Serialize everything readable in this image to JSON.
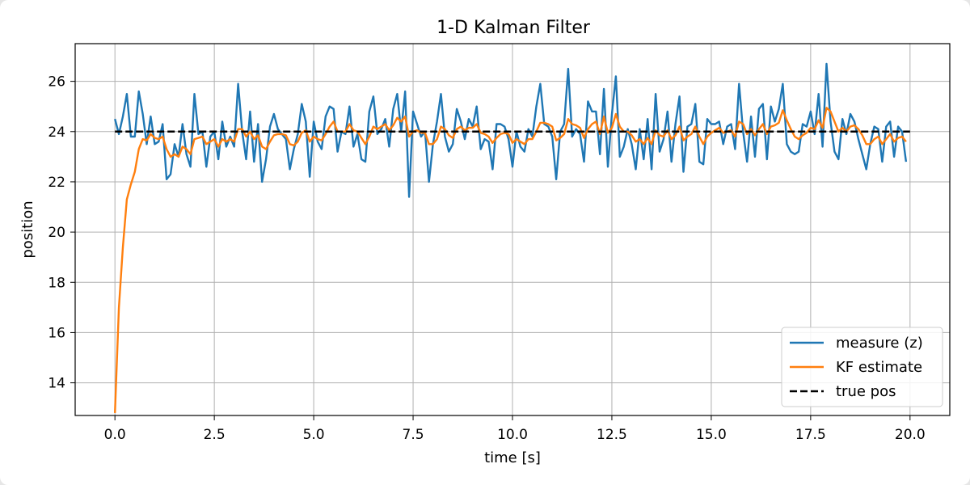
{
  "chart_data": {
    "type": "line",
    "title": "1-D Kalman Filter",
    "xlabel": "time [s]",
    "ylabel": "position",
    "xlim": [
      -1,
      21
    ],
    "ylim": [
      12.7,
      27.5
    ],
    "grid": true,
    "legend_position": "lower-right",
    "xticks": [
      0.0,
      2.5,
      5.0,
      7.5,
      10.0,
      12.5,
      15.0,
      17.5,
      20.0
    ],
    "xtick_labels": [
      "0.0",
      "2.5",
      "5.0",
      "7.5",
      "10.0",
      "12.5",
      "15.0",
      "17.5",
      "20.0"
    ],
    "yticks": [
      14,
      16,
      18,
      20,
      22,
      24,
      26
    ],
    "ytick_labels": [
      "14",
      "16",
      "18",
      "20",
      "22",
      "24",
      "26"
    ],
    "series": [
      {
        "name": "measure (z)",
        "color": "#1f77b4",
        "style": "solid",
        "x": [
          0.0,
          0.1,
          0.2,
          0.3,
          0.4,
          0.5,
          0.6,
          0.7,
          0.8,
          0.9,
          1.0,
          1.1,
          1.2,
          1.3,
          1.4,
          1.5,
          1.6,
          1.7,
          1.8,
          1.9,
          2.0,
          2.1,
          2.2,
          2.3,
          2.4,
          2.5,
          2.6,
          2.7,
          2.8,
          2.9,
          3.0,
          3.1,
          3.2,
          3.3,
          3.4,
          3.5,
          3.6,
          3.7,
          3.8,
          3.9,
          4.0,
          4.1,
          4.2,
          4.3,
          4.4,
          4.5,
          4.6,
          4.7,
          4.8,
          4.9,
          5.0,
          5.1,
          5.2,
          5.3,
          5.4,
          5.5,
          5.6,
          5.7,
          5.8,
          5.9,
          6.0,
          6.1,
          6.2,
          6.3,
          6.4,
          6.5,
          6.6,
          6.7,
          6.8,
          6.9,
          7.0,
          7.1,
          7.2,
          7.3,
          7.4,
          7.5,
          7.6,
          7.7,
          7.8,
          7.9,
          8.0,
          8.1,
          8.2,
          8.3,
          8.4,
          8.5,
          8.6,
          8.7,
          8.8,
          8.9,
          9.0,
          9.1,
          9.2,
          9.3,
          9.4,
          9.5,
          9.6,
          9.7,
          9.8,
          9.9,
          10.0,
          10.1,
          10.2,
          10.3,
          10.4,
          10.5,
          10.6,
          10.7,
          10.8,
          10.9,
          11.0,
          11.1,
          11.2,
          11.3,
          11.4,
          11.5,
          11.6,
          11.7,
          11.8,
          11.9,
          12.0,
          12.1,
          12.2,
          12.3,
          12.4,
          12.5,
          12.6,
          12.7,
          12.8,
          12.9,
          13.0,
          13.1,
          13.2,
          13.3,
          13.4,
          13.5,
          13.6,
          13.7,
          13.8,
          13.9,
          14.0,
          14.1,
          14.2,
          14.3,
          14.4,
          14.5,
          14.6,
          14.7,
          14.8,
          14.9,
          15.0,
          15.1,
          15.2,
          15.3,
          15.4,
          15.5,
          15.6,
          15.7,
          15.8,
          15.9,
          16.0,
          16.1,
          16.2,
          16.3,
          16.4,
          16.5,
          16.6,
          16.7,
          16.8,
          16.9,
          17.0,
          17.1,
          17.2,
          17.3,
          17.4,
          17.5,
          17.6,
          17.7,
          17.8,
          17.9,
          18.0,
          18.1,
          18.2,
          18.3,
          18.4,
          18.5,
          18.6,
          18.7,
          18.8,
          18.9,
          19.0,
          19.1,
          19.2,
          19.3,
          19.4,
          19.5,
          19.6,
          19.7,
          19.8,
          19.9
        ],
        "values": [
          24.5,
          23.9,
          24.6,
          25.5,
          23.8,
          23.8,
          25.6,
          24.7,
          23.5,
          24.6,
          23.5,
          23.6,
          24.3,
          22.1,
          22.3,
          23.5,
          23.0,
          24.3,
          23.1,
          22.6,
          25.5,
          23.9,
          24.0,
          22.6,
          23.8,
          24.0,
          22.9,
          24.4,
          23.4,
          23.8,
          23.4,
          25.9,
          24.0,
          22.9,
          24.8,
          22.8,
          24.3,
          22.0,
          22.9,
          24.2,
          24.7,
          24.1,
          23.9,
          23.7,
          22.5,
          23.3,
          23.9,
          25.1,
          24.4,
          22.2,
          24.4,
          23.6,
          23.3,
          24.6,
          25.0,
          24.9,
          23.2,
          24.0,
          23.9,
          25.0,
          23.4,
          23.9,
          22.9,
          22.8,
          24.8,
          25.4,
          23.9,
          24.1,
          24.5,
          23.4,
          24.9,
          25.5,
          24.0,
          25.6,
          21.4,
          24.8,
          24.3,
          23.8,
          24.0,
          22.0,
          23.5,
          24.4,
          25.5,
          23.8,
          23.2,
          23.5,
          24.9,
          24.4,
          23.7,
          24.5,
          24.2,
          25.0,
          23.3,
          23.7,
          23.6,
          22.5,
          24.3,
          24.3,
          24.2,
          23.7,
          22.6,
          24.0,
          23.4,
          23.2,
          24.1,
          23.8,
          25.0,
          25.9,
          24.3,
          24.2,
          23.8,
          22.1,
          24.0,
          24.3,
          26.5,
          23.8,
          24.1,
          23.9,
          22.8,
          25.2,
          24.8,
          24.8,
          23.1,
          25.7,
          22.6,
          24.7,
          26.2,
          23.0,
          23.4,
          24.1,
          23.5,
          22.5,
          24.1,
          22.9,
          24.5,
          22.5,
          25.5,
          23.2,
          23.7,
          24.8,
          22.8,
          24.3,
          25.4,
          22.4,
          24.2,
          24.3,
          25.1,
          22.8,
          22.7,
          24.5,
          24.3,
          24.3,
          24.4,
          23.5,
          24.2,
          24.3,
          23.3,
          25.9,
          24.0,
          22.8,
          24.6,
          23.0,
          24.9,
          25.1,
          22.9,
          25.0,
          24.4,
          24.9,
          25.9,
          23.5,
          23.2,
          23.1,
          23.2,
          24.3,
          24.2,
          24.8,
          23.9,
          25.5,
          23.4,
          26.7,
          24.4,
          23.2,
          22.9,
          24.5,
          23.9,
          24.7,
          24.4,
          23.7,
          23.1,
          22.5,
          23.5,
          24.2,
          24.1,
          22.8,
          24.2,
          24.4,
          23.0,
          24.2,
          24.0,
          22.8
        ]
      },
      {
        "name": "KF estimate",
        "color": "#ff7f0e",
        "style": "solid",
        "x": [
          0.0,
          0.1,
          0.2,
          0.3,
          0.4,
          0.5,
          0.6,
          0.7,
          0.8,
          0.9,
          1.0,
          1.1,
          1.2,
          1.3,
          1.4,
          1.5,
          1.6,
          1.7,
          1.8,
          1.9,
          2.0,
          2.1,
          2.2,
          2.3,
          2.4,
          2.5,
          2.6,
          2.7,
          2.8,
          2.9,
          3.0,
          3.1,
          3.2,
          3.3,
          3.4,
          3.5,
          3.6,
          3.7,
          3.8,
          3.9,
          4.0,
          4.1,
          4.2,
          4.3,
          4.4,
          4.5,
          4.6,
          4.7,
          4.8,
          4.9,
          5.0,
          5.1,
          5.2,
          5.3,
          5.4,
          5.5,
          5.6,
          5.7,
          5.8,
          5.9,
          6.0,
          6.1,
          6.2,
          6.3,
          6.4,
          6.5,
          6.6,
          6.7,
          6.8,
          6.9,
          7.0,
          7.1,
          7.2,
          7.3,
          7.4,
          7.5,
          7.6,
          7.7,
          7.8,
          7.9,
          8.0,
          8.1,
          8.2,
          8.3,
          8.4,
          8.5,
          8.6,
          8.7,
          8.8,
          8.9,
          9.0,
          9.1,
          9.2,
          9.3,
          9.4,
          9.5,
          9.6,
          9.7,
          9.8,
          9.9,
          10.0,
          10.1,
          10.2,
          10.3,
          10.4,
          10.5,
          10.6,
          10.7,
          10.8,
          10.9,
          11.0,
          11.1,
          11.2,
          11.3,
          11.4,
          11.5,
          11.6,
          11.7,
          11.8,
          11.9,
          12.0,
          12.1,
          12.2,
          12.3,
          12.4,
          12.5,
          12.6,
          12.7,
          12.8,
          12.9,
          13.0,
          13.1,
          13.2,
          13.3,
          13.4,
          13.5,
          13.6,
          13.7,
          13.8,
          13.9,
          14.0,
          14.1,
          14.2,
          14.3,
          14.4,
          14.5,
          14.6,
          14.7,
          14.8,
          14.9,
          15.0,
          15.1,
          15.2,
          15.3,
          15.4,
          15.5,
          15.6,
          15.7,
          15.8,
          15.9,
          16.0,
          16.1,
          16.2,
          16.3,
          16.4,
          16.5,
          16.6,
          16.7,
          16.8,
          16.9,
          17.0,
          17.1,
          17.2,
          17.3,
          17.4,
          17.5,
          17.6,
          17.7,
          17.8,
          17.9,
          18.0,
          18.1,
          18.2,
          18.3,
          18.4,
          18.5,
          18.6,
          18.7,
          18.8,
          18.9,
          19.0,
          19.1,
          19.2,
          19.3,
          19.4,
          19.5,
          19.6,
          19.7,
          19.8,
          19.9
        ],
        "values": [
          12.8,
          17.0,
          19.4,
          21.3,
          21.9,
          22.4,
          23.3,
          23.7,
          23.65,
          23.9,
          23.75,
          23.7,
          23.8,
          23.3,
          23.0,
          23.1,
          23.0,
          23.4,
          23.3,
          23.1,
          23.7,
          23.75,
          23.8,
          23.5,
          23.6,
          23.7,
          23.4,
          23.7,
          23.6,
          23.7,
          23.6,
          24.1,
          24.1,
          23.8,
          24.0,
          23.7,
          23.85,
          23.4,
          23.3,
          23.6,
          23.85,
          23.9,
          23.9,
          23.85,
          23.5,
          23.45,
          23.6,
          23.95,
          24.05,
          23.6,
          23.8,
          23.7,
          23.65,
          23.9,
          24.2,
          24.4,
          24.0,
          24.0,
          24.0,
          24.3,
          24.05,
          24.0,
          23.75,
          23.5,
          23.8,
          24.2,
          24.1,
          24.2,
          24.3,
          24.05,
          24.25,
          24.55,
          24.4,
          24.6,
          23.8,
          24.0,
          24.05,
          23.95,
          23.95,
          23.5,
          23.5,
          23.7,
          24.2,
          24.1,
          23.85,
          23.75,
          24.1,
          24.2,
          24.05,
          24.15,
          24.15,
          24.3,
          23.95,
          23.9,
          23.8,
          23.55,
          23.75,
          23.9,
          23.95,
          23.9,
          23.55,
          23.7,
          23.6,
          23.5,
          23.7,
          23.7,
          24.0,
          24.35,
          24.35,
          24.3,
          24.2,
          23.65,
          23.75,
          23.9,
          24.5,
          24.3,
          24.25,
          24.15,
          23.75,
          24.1,
          24.3,
          24.4,
          23.9,
          24.6,
          23.95,
          24.15,
          24.7,
          24.2,
          24.0,
          24.0,
          23.85,
          23.6,
          23.7,
          23.5,
          23.75,
          23.5,
          24.05,
          23.85,
          23.8,
          24.05,
          23.7,
          23.85,
          24.2,
          23.65,
          23.8,
          23.9,
          24.2,
          23.8,
          23.5,
          23.8,
          23.95,
          24.05,
          24.15,
          23.95,
          24.0,
          24.05,
          23.8,
          24.4,
          24.3,
          23.9,
          24.1,
          23.85,
          24.1,
          24.3,
          23.9,
          24.2,
          24.25,
          24.35,
          24.85,
          24.45,
          24.1,
          23.8,
          23.7,
          23.85,
          23.95,
          24.15,
          24.1,
          24.45,
          24.15,
          24.95,
          24.8,
          24.4,
          24.0,
          24.15,
          24.0,
          24.2,
          24.25,
          24.1,
          23.85,
          23.5,
          23.5,
          23.7,
          23.8,
          23.5,
          23.7,
          23.9,
          23.6,
          23.75,
          23.8,
          23.6
        ]
      },
      {
        "name": "true pos",
        "color": "#000000",
        "style": "dashed",
        "x": [
          0.0,
          20.0
        ],
        "values": [
          24.0,
          24.0
        ]
      }
    ]
  }
}
